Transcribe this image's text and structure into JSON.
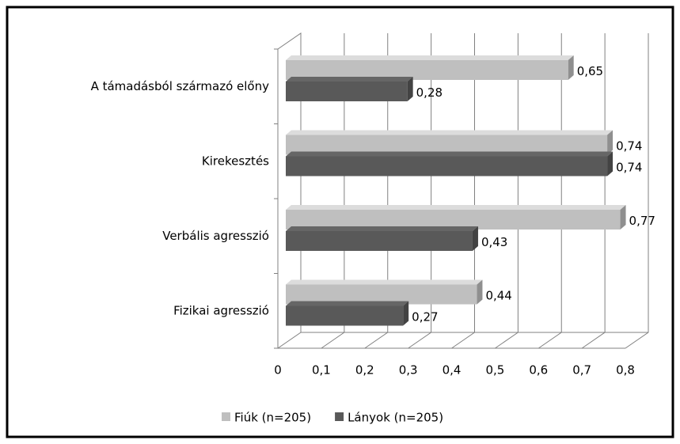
{
  "chart_data": {
    "type": "bar3d_horizontal",
    "categories": [
      "A támadásból származó előny",
      "Kirekesztés",
      "Verbális agresszió",
      "Fizikai agresszió"
    ],
    "series": [
      {
        "name": "Fiúk (n=205)",
        "color": "#bfbfbf",
        "values": [
          0.65,
          0.74,
          0.77,
          0.44
        ],
        "value_labels": [
          "0,65",
          "0,74",
          "0,77",
          "0,44"
        ]
      },
      {
        "name": "Lányok (n=205)",
        "color": "#595959",
        "values": [
          0.28,
          0.74,
          0.43,
          0.27
        ],
        "value_labels": [
          "0,28",
          "0,74",
          "0,43",
          "0,27"
        ]
      }
    ],
    "xlim": [
      0,
      0.8
    ],
    "xticks": [
      0,
      {
        "value": 0.1,
        "label": "0,1"
      },
      {
        "value": 0.2,
        "label": "0,2"
      },
      {
        "value": 0.3,
        "label": "0,3"
      },
      {
        "value": 0.4,
        "label": "0,4"
      },
      {
        "value": 0.5,
        "label": "0,5"
      },
      {
        "value": 0.6,
        "label": "0,6"
      },
      {
        "value": 0.7,
        "label": "0,7"
      },
      {
        "value": 0.8,
        "label": "0,8"
      }
    ],
    "grid": true,
    "legend": "bottom"
  }
}
